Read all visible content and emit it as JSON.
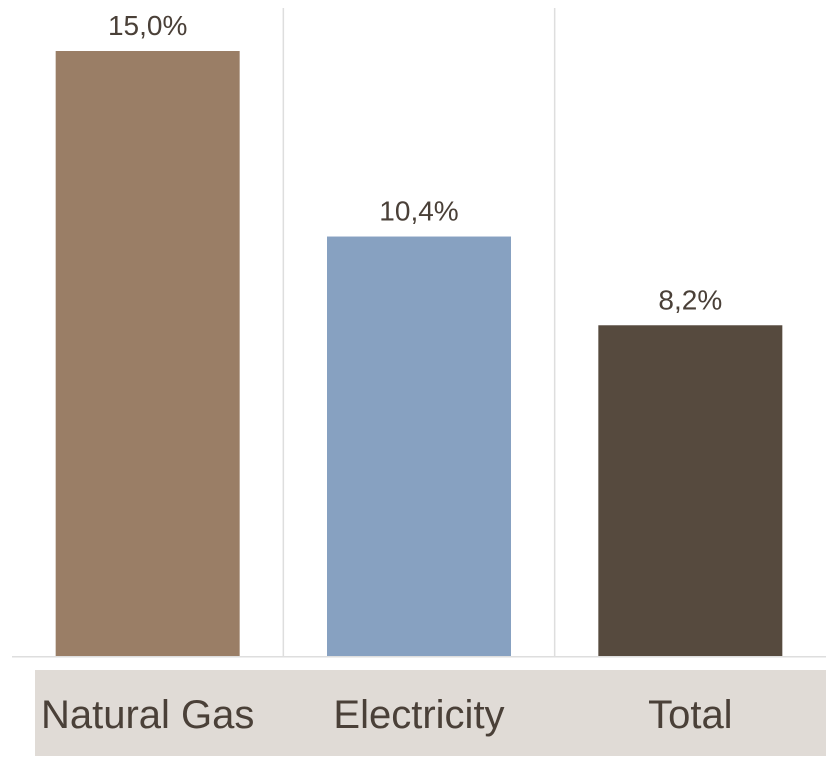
{
  "chart_data": {
    "type": "bar",
    "categories": [
      "Natural Gas",
      "Electricity",
      "Total"
    ],
    "values": [
      15.0,
      10.4,
      8.2
    ],
    "value_labels": [
      "15,0%",
      "10,4%",
      "8,2%"
    ],
    "bar_colors": [
      "#9a7e66",
      "#87a1c1",
      "#564a3e"
    ],
    "ylim": [
      0,
      15.0
    ],
    "grid": "vertical separators between categories",
    "legend": "none",
    "category_band_color": "#e0dbd6",
    "text_color": "#4a4038",
    "gridline_color": "#dedede"
  }
}
